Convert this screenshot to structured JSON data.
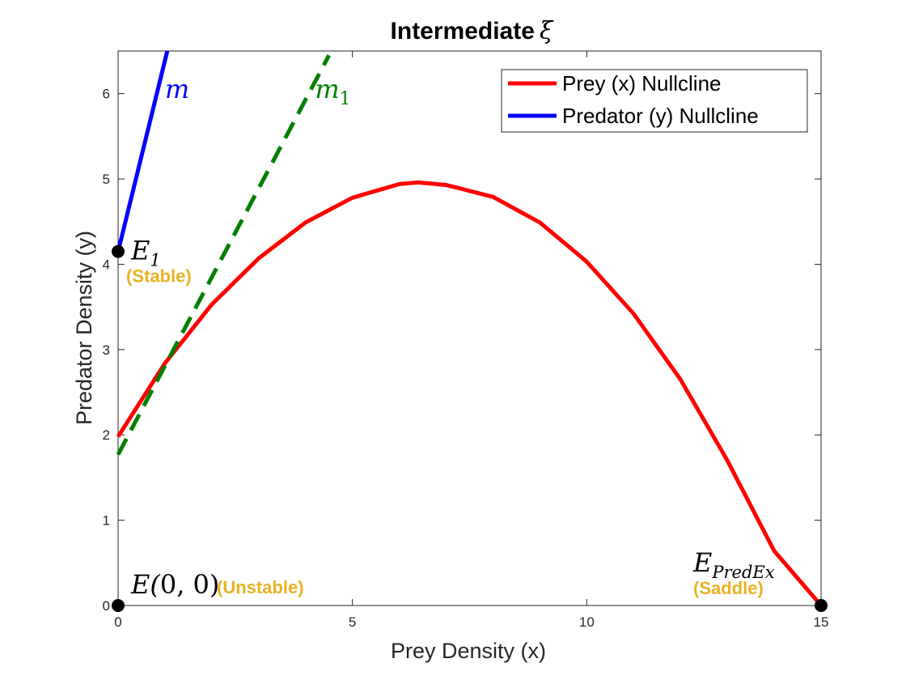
{
  "chart_data": {
    "type": "line",
    "title": "Intermediate",
    "title_symbol": "ξ",
    "xlabel": "Prey Density (x)",
    "ylabel": "Predator Density (y)",
    "xlim": [
      0,
      15
    ],
    "ylim": [
      0,
      6.5
    ],
    "x_ticks": [
      0,
      5,
      10,
      15
    ],
    "y_ticks": [
      0,
      1,
      2,
      3,
      4,
      5,
      6
    ],
    "grid": false,
    "legend_position": "top-right",
    "series": [
      {
        "name": "Prey (x) Nullcline",
        "color": "#ff0000",
        "style": "solid",
        "x": [
          0,
          1,
          2,
          3,
          4,
          5,
          6,
          6.4,
          7,
          8,
          9,
          10,
          11,
          12,
          13,
          14,
          15
        ],
        "y": [
          1.98,
          2.84,
          3.53,
          4.07,
          4.49,
          4.78,
          4.94,
          4.96,
          4.93,
          4.79,
          4.49,
          4.03,
          3.42,
          2.65,
          1.7,
          0.64,
          0
        ]
      },
      {
        "name": "Predator (y) Nullcline",
        "color": "#0000ff",
        "style": "solid",
        "x": [
          0,
          1.05
        ],
        "y": [
          4.15,
          6.5
        ]
      },
      {
        "name": "",
        "color": "#007f00",
        "style": "dashed",
        "x": [
          0,
          4.5
        ],
        "y": [
          1.77,
          6.45
        ]
      }
    ],
    "line_labels": [
      {
        "text": "m",
        "subscript": "",
        "color": "#0000ff",
        "x": 1.0,
        "y": 5.95
      },
      {
        "text": "m",
        "subscript": "1",
        "color": "#007f00",
        "x": 4.2,
        "y": 5.95
      }
    ],
    "points": [
      {
        "x": 0,
        "y": 4.15,
        "label": "E",
        "label_sub": "1",
        "status": "(Stable)"
      },
      {
        "x": 0,
        "y": 0,
        "label": "E",
        "label_sub": "(",
        "label_rest": "0, 0)",
        "status": "(Unstable)"
      },
      {
        "x": 15,
        "y": 0,
        "label": "E",
        "label_sub": "PredEx",
        "status": "(Saddle)"
      }
    ],
    "status_color": "#e8b224"
  }
}
